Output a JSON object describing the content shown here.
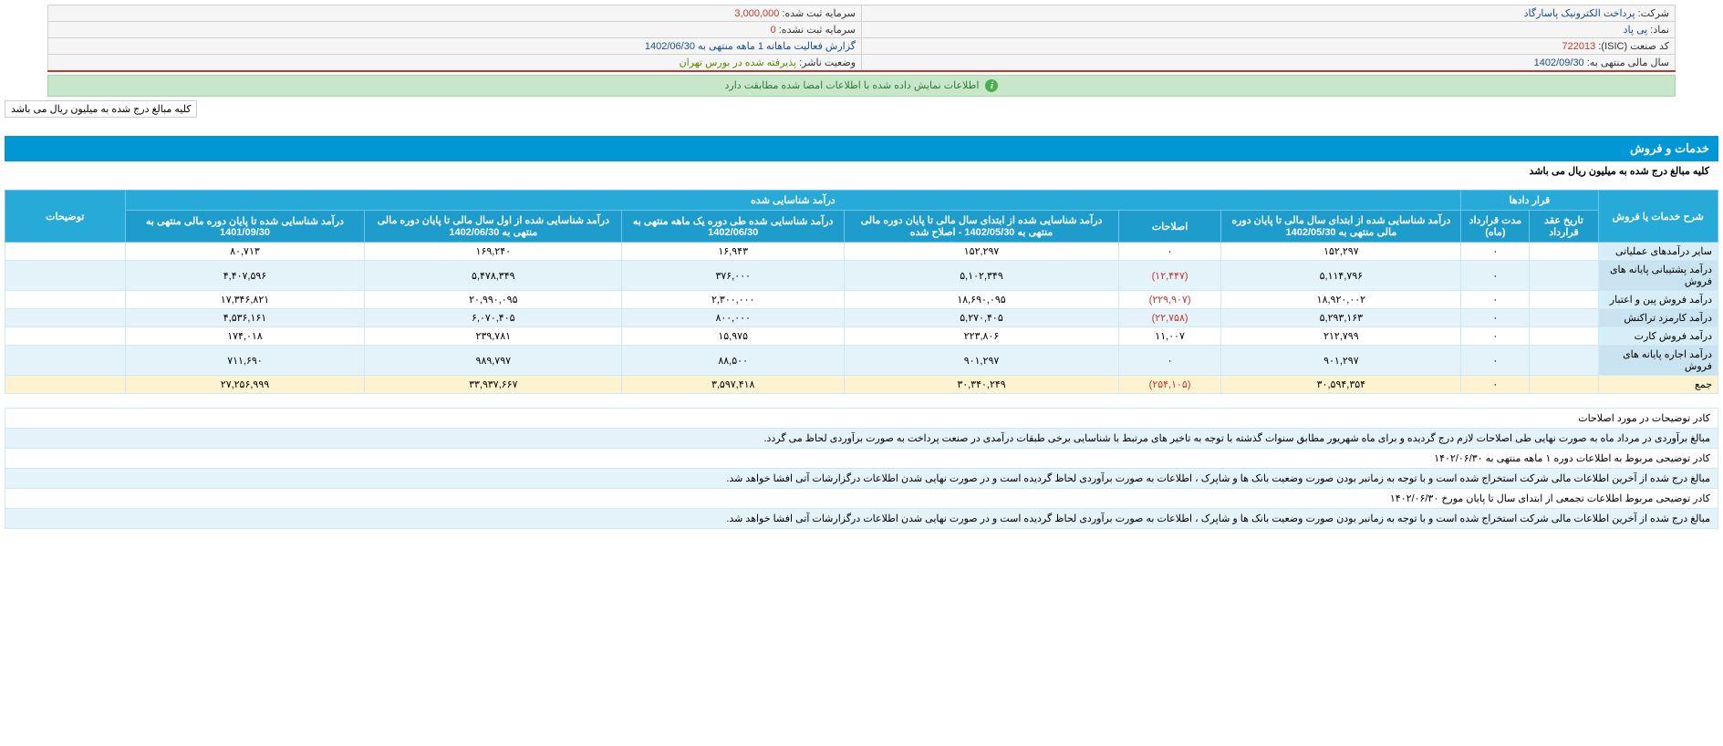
{
  "info": {
    "company_label": "شرکت:",
    "company_value": "پرداخت الکترونیک پاسارگاد",
    "capital_reg_label": "سرمایه ثبت شده:",
    "capital_reg_value": "3,000,000",
    "symbol_label": "نماد:",
    "symbol_value": "پی پاد",
    "capital_unreg_label": "سرمایه ثبت نشده:",
    "capital_unreg_value": "0",
    "isic_label": "کد صنعت (ISIC):",
    "isic_value": "722013",
    "report_label": "",
    "report_value": "گزارش فعالیت ماهانه 1 ماهه منتهی به 1402/06/30",
    "fiscal_label": "سال مالی منتهی به:",
    "fiscal_value": "1402/09/30",
    "publisher_label": "وضعیت ناشر:",
    "publisher_value": "پذیرفته شده در بورس تهران"
  },
  "status": "اطلاعات نمایش داده شده با اطلاعات امضا شده مطابقت دارد",
  "unit_note": "کلیه مبالغ درج شده به میلیون ریال می باشد",
  "section": {
    "title": "خدمات و فروش",
    "note": "کلیه مبالغ درج شده به میلیون ریال می باشد"
  },
  "headers": {
    "desc": "شرح خدمات یا فروش",
    "contracts": "قرار دادها",
    "contract_date": "تاریخ عقد قرارداد",
    "contract_duration": "مدت قرارداد (ماه)",
    "recognized": "درآمد شناسایی شده",
    "col1": "درآمد شناسایی شده از ابتدای سال مالی تا پایان دوره مالی منتهی به 1402/05/30",
    "col2": "اصلاحات",
    "col3": "درآمد شناسایی شده از ابتدای سال مالی تا پایان دوره مالی منتهی به 1402/05/30 - اصلاح شده",
    "col4": "درآمد شناسایی شده طی دوره یک ماهه منتهی به 1402/06/30",
    "col5": "درآمد شناسایی شده از اول سال مالی تا پایان دوره مالی منتهی به 1402/06/30",
    "col6": "درآمد شناسایی شده تا پایان دوره مالی منتهی به 1401/09/30",
    "explain": "توضیحات"
  },
  "rows": [
    {
      "label": "سایر درآمدهای عملیاتی",
      "date": "",
      "dur": "۰",
      "c1": "۱۵۲,۲۹۷",
      "c2": "۰",
      "c3": "۱۵۲,۲۹۷",
      "c4": "۱۶,۹۴۳",
      "c5": "۱۶۹,۲۴۰",
      "c6": "۸۰,۷۱۳",
      "neg2": false
    },
    {
      "label": "درآمد پشتیبانی پایانه های فروش",
      "date": "",
      "dur": "۰",
      "c1": "۵,۱۱۴,۷۹۶",
      "c2": "(۱۲,۴۴۷)",
      "c3": "۵,۱۰۲,۳۴۹",
      "c4": "۳۷۶,۰۰۰",
      "c5": "۵,۴۷۸,۳۴۹",
      "c6": "۴,۴۰۷,۵۹۶",
      "neg2": true
    },
    {
      "label": "درآمد فروش پین و اعتبار",
      "date": "",
      "dur": "۰",
      "c1": "۱۸,۹۲۰,۰۰۲",
      "c2": "(۲۲۹,۹۰۷)",
      "c3": "۱۸,۶۹۰,۰۹۵",
      "c4": "۲,۳۰۰,۰۰۰",
      "c5": "۲۰,۹۹۰,۰۹۵",
      "c6": "۱۷,۳۴۶,۸۲۱",
      "neg2": true
    },
    {
      "label": "درآمد کارمزد تراکنش",
      "date": "",
      "dur": "۰",
      "c1": "۵,۲۹۳,۱۶۳",
      "c2": "(۲۲,۷۵۸)",
      "c3": "۵,۲۷۰,۴۰۵",
      "c4": "۸۰۰,۰۰۰",
      "c5": "۶,۰۷۰,۴۰۵",
      "c6": "۴,۵۳۶,۱۶۱",
      "neg2": true
    },
    {
      "label": "درآمد فروش کارت",
      "date": "",
      "dur": "۰",
      "c1": "۲۱۲,۷۹۹",
      "c2": "۱۱,۰۰۷",
      "c3": "۲۲۳,۸۰۶",
      "c4": "۱۵,۹۷۵",
      "c5": "۲۳۹,۷۸۱",
      "c6": "۱۷۴,۰۱۸",
      "neg2": false
    },
    {
      "label": "درآمد اجاره پایانه های فروش",
      "date": "",
      "dur": "۰",
      "c1": "۹۰۱,۲۹۷",
      "c2": "۰",
      "c3": "۹۰۱,۲۹۷",
      "c4": "۸۸,۵۰۰",
      "c5": "۹۸۹,۷۹۷",
      "c6": "۷۱۱,۶۹۰",
      "neg2": false
    }
  ],
  "total": {
    "label": "جمع",
    "date": "",
    "dur": "۰",
    "c1": "۳۰,۵۹۴,۳۵۴",
    "c2": "(۲۵۴,۱۰۵)",
    "c3": "۳۰,۳۴۰,۲۴۹",
    "c4": "۳,۵۹۷,۴۱۸",
    "c5": "۳۳,۹۳۷,۶۶۷",
    "c6": "۲۷,۲۵۶,۹۹۹",
    "neg2": true
  },
  "notes": [
    "کادر توضیحات در مورد اصلاحات",
    "مبالغ برآوردی در مرداد ماه به صورت نهایی طی اصلاحات لازم درج گردیده و برای ماه شهریور مطابق سنوات گذشته با توجه به تاخیر های مرتبط با شناسایی برخی طبقات درآمدی در صنعت پرداخت به صورت برآوردی لحاظ می گردد.",
    "کادر توضیحی مربوط به اطلاعات دوره ۱ ماهه منتهی به ۱۴۰۲/۰۶/۳۰",
    "مبالغ درج شده از آخرین اطلاعات مالی شرکت استخراج شده است و با توجه به زمانبر بودن صورت وضعیت بانک ها و شاپرک ، اطلاعات به صورت برآوردی لحاظ گردیده است و در صورت نهایی شدن اطلاعات درگزارشات آتی افشا خواهد شد.",
    "کادر توضیحی مربوط اطلاعات تجمعی از ابتدای سال تا پایان مورخ ۱۴۰۲/۰۶/۳۰",
    "مبالغ درج شده از آخرین اطلاعات مالی شرکت استخراج شده است و با توجه به زمانبر بودن صورت وضعیت بانک ها و شاپرک ، اطلاعات به صورت برآوردی لحاظ گردیده است و در صورت نهایی شدن اطلاعات درگزارشات آتی افشا خواهد شد."
  ],
  "colors": {
    "header_bg": "#27aad8",
    "section_bg": "#0097d6",
    "row_alt": "#e4f2f9",
    "total_bg": "#fdf3d1",
    "negative": "#c0392b",
    "status_bg": "#c8e6c9"
  }
}
